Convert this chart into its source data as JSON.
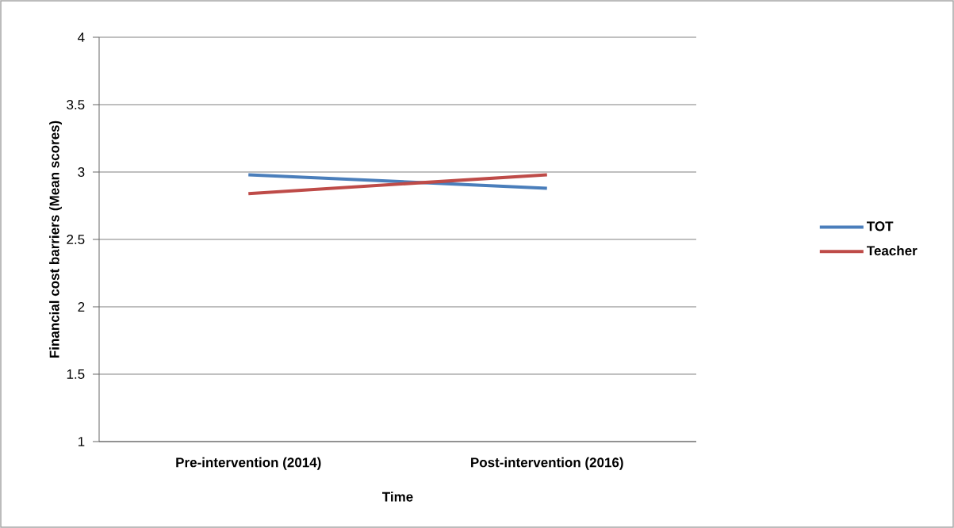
{
  "chart_data": {
    "type": "line",
    "xlabel": "Time",
    "ylabel": "Financial cost barriers (Mean scores)",
    "categories": [
      "Pre-intervention (2014)",
      "Post-intervention (2016)"
    ],
    "series": [
      {
        "name": "TOT",
        "color": "#4a7ebb",
        "values": [
          2.98,
          2.88
        ]
      },
      {
        "name": "Teacher",
        "color": "#be4b48",
        "values": [
          2.84,
          2.98
        ]
      }
    ],
    "ylim": [
      1,
      4
    ],
    "yticks": [
      1,
      1.5,
      2,
      2.5,
      3,
      3.5,
      4
    ],
    "grid": "y",
    "legend": "right",
    "marker": "none",
    "line_style": "solid"
  }
}
